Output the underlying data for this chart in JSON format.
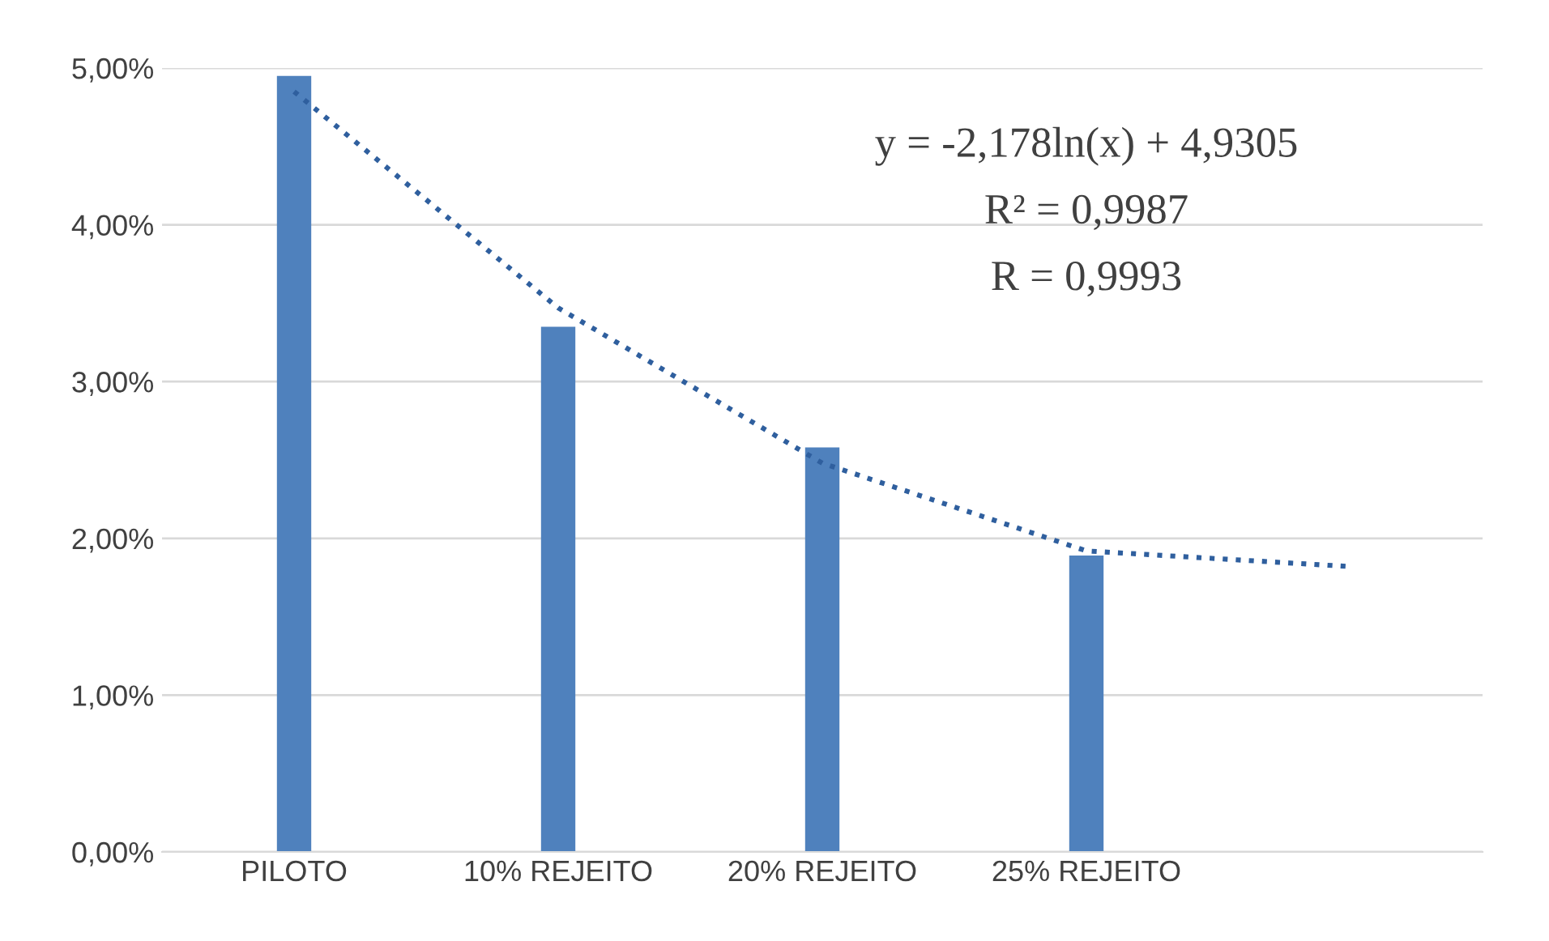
{
  "chart_data": {
    "type": "bar",
    "categories": [
      "PILOTO",
      "10% REJEITO",
      "20% REJEITO",
      "25% REJEITO",
      null
    ],
    "series": [
      {
        "color": "#4f81bd",
        "values": [
          4.95,
          3.35,
          2.58,
          1.89,
          null
        ]
      },
      {
        "type": "line",
        "color": "#2f5f9e",
        "line_style": "dotted",
        "values": [
          4.85,
          3.47,
          2.48,
          1.92,
          1.82
        ]
      }
    ],
    "ylim": [
      0,
      5
    ],
    "yticks": [
      {
        "value": 0,
        "label": "0,00%"
      },
      {
        "value": 1,
        "label": "1,00%"
      },
      {
        "value": 2,
        "label": "2,00%"
      },
      {
        "value": 3,
        "label": "3,00%"
      },
      {
        "value": 4,
        "label": "4,00%"
      },
      {
        "value": 5,
        "label": "5,00%"
      }
    ],
    "grid": "y",
    "legend": false,
    "annotations": [
      "y = -2,178ln(x) + 4,9305",
      "R² = 0,9987",
      "R = 0,9993"
    ]
  }
}
